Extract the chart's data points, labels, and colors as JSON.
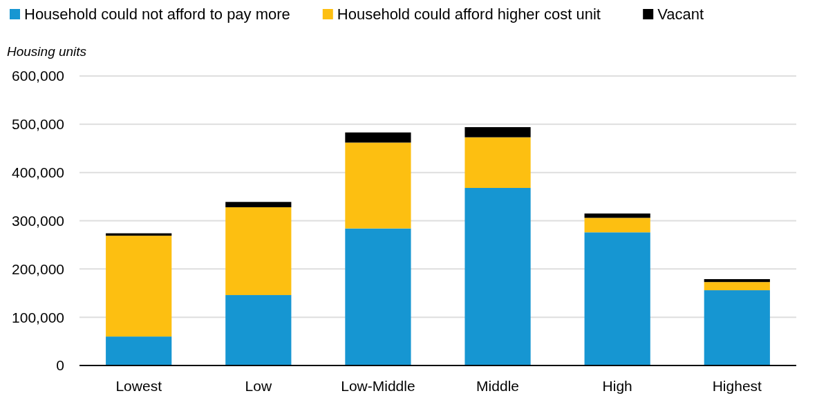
{
  "chart_data": {
    "type": "bar",
    "ylabel": "Housing units",
    "stacked": true,
    "categories": [
      "Lowest",
      "Low",
      "Low-Middle",
      "Middle",
      "High",
      "Highest"
    ],
    "series": [
      {
        "name": "Household could not afford to pay more",
        "color": "#1696d2",
        "values": [
          60000,
          146000,
          284000,
          368000,
          276000,
          156000
        ]
      },
      {
        "name": "Household could afford higher cost unit",
        "color": "#fdbf11",
        "values": [
          209000,
          182000,
          178000,
          105000,
          30000,
          17000
        ]
      },
      {
        "name": "Vacant",
        "color": "#000000",
        "values": [
          5000,
          11000,
          21000,
          21000,
          9000,
          6000
        ]
      }
    ],
    "ylim": [
      0,
      600000
    ],
    "yticks": [
      {
        "value": 0,
        "label": "0"
      },
      {
        "value": 100000,
        "label": "100,000"
      },
      {
        "value": 200000,
        "label": "200,000"
      },
      {
        "value": 300000,
        "label": "300,000"
      },
      {
        "value": 400000,
        "label": "400,000"
      },
      {
        "value": 500000,
        "label": "500,000"
      },
      {
        "value": 600000,
        "label": "600,000"
      }
    ],
    "grid": "y",
    "legend": "top left"
  }
}
